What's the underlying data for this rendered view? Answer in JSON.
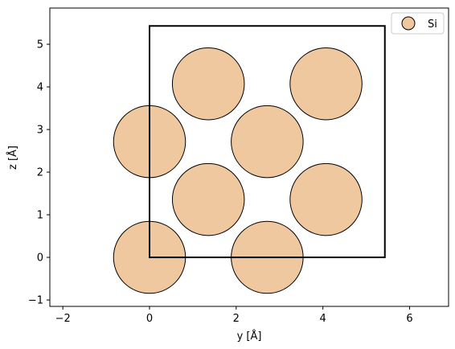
{
  "chart_data": {
    "type": "scatter",
    "title": "",
    "xlabel": "y [Å]",
    "ylabel": "z [Å]",
    "xlim": [
      -2.3,
      6.9
    ],
    "ylim": [
      -1.15,
      5.85
    ],
    "xticks": [
      -2,
      0,
      2,
      4,
      6
    ],
    "yticks": [
      -1,
      0,
      1,
      2,
      3,
      4,
      5
    ],
    "grid": false,
    "legend_position": "top-right",
    "atom_radius": 0.83,
    "cell": {
      "y": [
        0,
        5.43
      ],
      "z": [
        0,
        5.43
      ]
    },
    "series": [
      {
        "name": "Si",
        "color": "#f0c8a0",
        "edge_color": "#000000",
        "points": [
          {
            "y": 0.0,
            "z": 0.0
          },
          {
            "y": 2.715,
            "z": 0.0
          },
          {
            "y": 1.3575,
            "z": 1.3575
          },
          {
            "y": 4.0725,
            "z": 1.3575
          },
          {
            "y": 0.0,
            "z": 2.715
          },
          {
            "y": 2.715,
            "z": 2.715
          },
          {
            "y": 1.3575,
            "z": 4.0725
          },
          {
            "y": 4.0725,
            "z": 4.0725
          }
        ]
      }
    ]
  }
}
